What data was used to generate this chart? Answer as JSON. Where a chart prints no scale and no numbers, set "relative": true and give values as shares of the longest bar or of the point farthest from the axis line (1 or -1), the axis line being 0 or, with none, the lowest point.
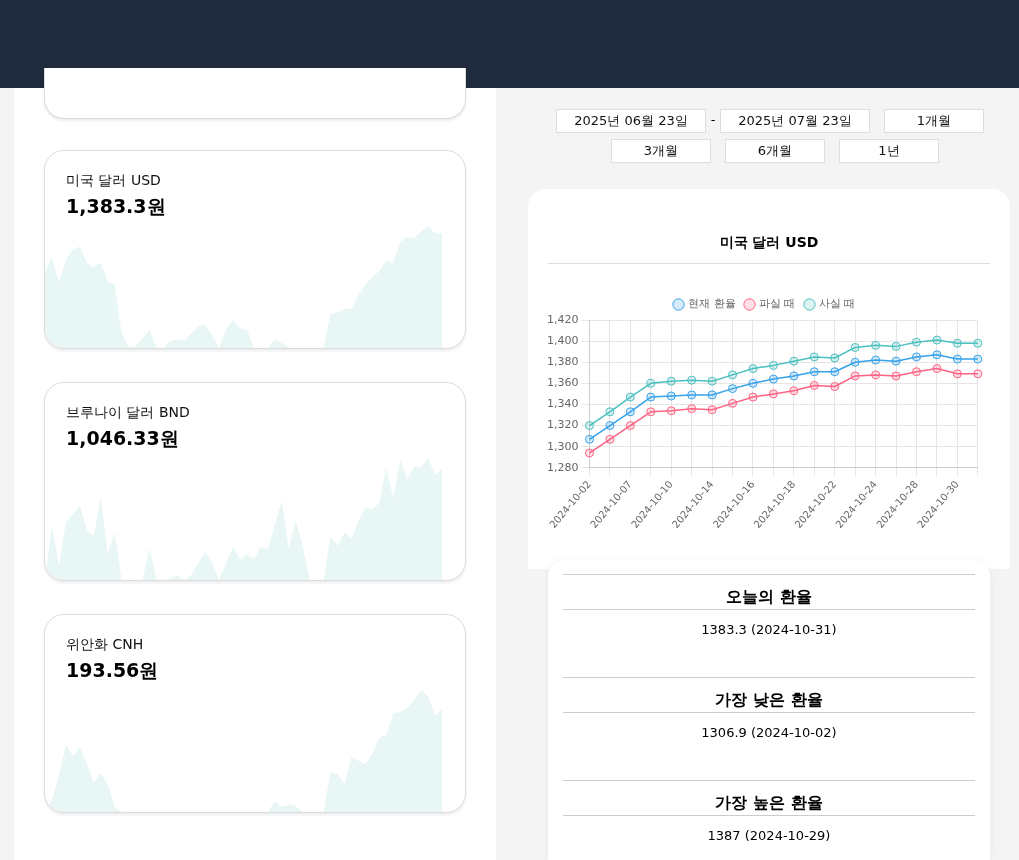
{
  "chart_data": [
    {
      "type": "area",
      "title": "미국 달러 USD",
      "subtitle": "1,383.3원",
      "relative": true,
      "categories": [
        null,
        null,
        null,
        null,
        null,
        null,
        null,
        null,
        null,
        null,
        null,
        null,
        null,
        null,
        null,
        null,
        null,
        null,
        null,
        null,
        null,
        null,
        null,
        null,
        null,
        null,
        null,
        null,
        null,
        null,
        null,
        null,
        null,
        null,
        null,
        null,
        null,
        null,
        null,
        null,
        null,
        null,
        null,
        null,
        null,
        null,
        null,
        null,
        null,
        null,
        null,
        null,
        null,
        null,
        null,
        null,
        null,
        null
      ],
      "series": [
        {
          "color": "#e8f6f6",
          "values": [
            0.63,
            0.74,
            0.54,
            0.72,
            0.81,
            0.83,
            0.7,
            0.66,
            0.7,
            0.54,
            0.52,
            0.12,
            0.01,
            0.01,
            0.08,
            0.15,
            0,
            0,
            0.06,
            0.07,
            0.06,
            0.12,
            0.18,
            0.19,
            0.1,
            0,
            0.15,
            0.23,
            0.16,
            0.15,
            0,
            0,
            0,
            0.07,
            0.04,
            0,
            0,
            0,
            0,
            0,
            0,
            0.28,
            0.29,
            0.32,
            0.32,
            0.43,
            0.52,
            0.58,
            0.63,
            0.72,
            0.7,
            0.87,
            0.91,
            0.9,
            0.96,
            1,
            0.94,
            0.94
          ]
        }
      ]
    },
    {
      "type": "area",
      "title": "브루나이 달러 BND",
      "subtitle": "1,046.33원",
      "relative": true,
      "categories": [
        null,
        null,
        null,
        null,
        null,
        null,
        null,
        null,
        null,
        null,
        null,
        null,
        null,
        null,
        null,
        null,
        null,
        null,
        null,
        null,
        null,
        null,
        null,
        null,
        null,
        null,
        null,
        null,
        null,
        null,
        null,
        null,
        null,
        null,
        null,
        null,
        null,
        null,
        null,
        null,
        null,
        null,
        null,
        null,
        null,
        null,
        null,
        null,
        null,
        null,
        null,
        null,
        null,
        null,
        null,
        null,
        null,
        null
      ],
      "series": [
        {
          "color": "#e8f6f6",
          "values": [
            0,
            0.44,
            0.12,
            0.47,
            0.54,
            0.61,
            0.41,
            0.36,
            0.68,
            0.22,
            0.39,
            0,
            0,
            0,
            0,
            0.26,
            0,
            0,
            0.01,
            0.04,
            0,
            0.04,
            0.14,
            0.23,
            0.14,
            0,
            0.14,
            0.27,
            0.17,
            0.21,
            0.17,
            0.27,
            0.25,
            0.45,
            0.65,
            0.25,
            0.49,
            0.28,
            0,
            0,
            0,
            0.35,
            0.28,
            0.39,
            0.34,
            0.48,
            0.59,
            0.58,
            0.63,
            0.92,
            0.67,
            0.99,
            0.83,
            0.93,
            0.92,
            1,
            0.86,
            0.91
          ]
        }
      ]
    },
    {
      "type": "area",
      "title": "위안화 CNH",
      "subtitle": "193.56원",
      "relative": true,
      "categories": [
        null,
        null,
        null,
        null,
        null,
        null,
        null,
        null,
        null,
        null,
        null,
        null,
        null,
        null,
        null,
        null,
        null,
        null,
        null,
        null,
        null,
        null,
        null,
        null,
        null,
        null,
        null,
        null,
        null,
        null,
        null,
        null,
        null,
        null,
        null,
        null,
        null,
        null,
        null,
        null,
        null,
        null,
        null,
        null,
        null,
        null,
        null,
        null,
        null,
        null,
        null,
        null,
        null,
        null,
        null,
        null,
        null,
        null
      ],
      "series": [
        {
          "color": "#e8f6f6",
          "values": [
            0,
            0.1,
            0.3,
            0.55,
            0.46,
            0.53,
            0.4,
            0.24,
            0.32,
            0.23,
            0.04,
            0,
            0,
            0,
            0,
            0,
            0,
            0,
            0,
            0,
            0,
            0,
            0,
            0,
            0,
            0,
            0,
            0,
            0,
            0,
            0,
            0,
            0,
            0.09,
            0.04,
            0.06,
            0.05,
            0,
            0,
            0,
            0,
            0.33,
            0.31,
            0.23,
            0.45,
            0.42,
            0.39,
            0.48,
            0.61,
            0.63,
            0.81,
            0.82,
            0.85,
            0.92,
            1,
            0.95,
            0.79,
            0.84
          ]
        }
      ]
    },
    {
      "type": "line",
      "title": "미국 달러 USD",
      "categories": [
        "2024-10-02",
        null,
        "2024-10-07",
        null,
        "2024-10-10",
        null,
        "2024-10-14",
        null,
        "2024-10-16",
        null,
        "2024-10-18",
        null,
        "2024-10-22",
        null,
        "2024-10-24",
        null,
        "2024-10-28",
        null,
        "2024-10-30",
        null
      ],
      "series": [
        {
          "name": "현재 환율",
          "color": "#36a2eb",
          "values": [
            1307,
            1320,
            1333,
            1347,
            1348,
            1349,
            1349,
            1355,
            1360,
            1364,
            1367,
            1371,
            1371,
            1380,
            1382,
            1381,
            1385,
            1387,
            1383,
            1383
          ]
        },
        {
          "name": "파실 때",
          "color": "#ff6384",
          "values": [
            1294,
            1307,
            1320,
            1333,
            1334,
            1336,
            1335,
            1341,
            1347,
            1350,
            1353,
            1358,
            1357,
            1367,
            1368,
            1367,
            1371,
            1374,
            1369,
            1369
          ]
        },
        {
          "name": "사실 때",
          "color": "#4bc0c0",
          "values": [
            1320,
            1333,
            1347,
            1360,
            1362,
            1363,
            1362,
            1368,
            1374,
            1377,
            1381,
            1385,
            1384,
            1394,
            1396,
            1395,
            1399,
            1401,
            1398,
            1398
          ]
        }
      ],
      "ylim": [
        1280,
        1420
      ],
      "yticks": [
        {
          "value": 1280,
          "label": "1,280"
        },
        {
          "value": 1300,
          "label": "1,300"
        },
        {
          "value": 1320,
          "label": "1,320"
        },
        {
          "value": 1340,
          "label": "1,340"
        },
        {
          "value": 1360,
          "label": "1,360"
        },
        {
          "value": 1380,
          "label": "1,380"
        },
        {
          "value": 1400,
          "label": "1,400"
        },
        {
          "value": 1420,
          "label": "1,420"
        }
      ],
      "grid": true,
      "legend": "top",
      "marker": "circle",
      "line_style": "solid",
      "annotations": [
        "2025년 06월 23일",
        "-",
        "2025년 07월 23일",
        "1개월",
        "3개월",
        "6개월",
        "1년"
      ]
    },
    {
      "type": "other",
      "annotations": [
        "오늘의 환율",
        "1383.3 (2024-10-31)",
        "가장 낮은 환율",
        "1306.9 (2024-10-02)",
        "가장 높은 환율",
        "1387 (2024-10-29)"
      ]
    }
  ]
}
